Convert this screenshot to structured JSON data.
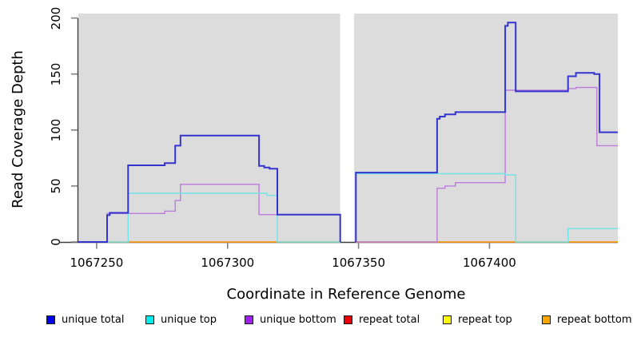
{
  "figure": {
    "x_axis_label": "Coordinate in Reference Genome",
    "y_axis_label": "Read Coverage Depth"
  },
  "legend": {
    "items": [
      {
        "label": "unique total",
        "color": "#0000EE"
      },
      {
        "label": "unique top",
        "color": "#00EEEE"
      },
      {
        "label": "unique bottom",
        "color": "#A020F0"
      },
      {
        "label": "repeat total",
        "color": "#EE0000"
      },
      {
        "label": "repeat top",
        "color": "#FFFF00"
      },
      {
        "label": "repeat bottom",
        "color": "#FFA500"
      }
    ]
  },
  "chart_data": {
    "type": "line",
    "subtype": "step-coverage-plot",
    "title": "",
    "xlabel": "Coordinate in Reference Genome",
    "ylabel": "Read Coverage Depth",
    "xlim": [
      1067243,
      1067449
    ],
    "ylim": [
      0,
      204
    ],
    "x_ticks": [
      1067250,
      1067300,
      1067350,
      1067400
    ],
    "y_ticks": [
      0,
      50,
      100,
      150,
      200
    ],
    "plot_background": "#DCDCDC",
    "gap_region_x": [
      1067343,
      1067348.3
    ],
    "grid": false,
    "legend_position": "bottom",
    "series": [
      {
        "name": "repeat total",
        "color": "#DD2222",
        "width": 1.2,
        "segments": [
          [
            [
              1067243,
              0
            ],
            [
              1067343,
              0
            ]
          ],
          [
            [
              1067349,
              0
            ],
            [
              1067449,
              0
            ]
          ]
        ]
      },
      {
        "name": "repeat top",
        "color": "#FFFF33",
        "width": 1.2,
        "segments": [
          [
            [
              1067243,
              0
            ],
            [
              1067343,
              0
            ]
          ],
          [
            [
              1067349,
              0
            ],
            [
              1067449,
              0
            ]
          ]
        ]
      },
      {
        "name": "repeat bottom",
        "color": "#FF9912",
        "width": 1.6,
        "segments": [
          [
            [
              1067243,
              0
            ],
            [
              1067343,
              0
            ]
          ],
          [
            [
              1067349,
              0
            ],
            [
              1067449,
              0
            ]
          ]
        ]
      },
      {
        "name": "unique bottom",
        "color": "#BC7CD9",
        "width": 1.4,
        "segments": [
          [
            [
              1067243,
              0
            ],
            [
              1067254,
              0
            ],
            [
              1067254,
              25.5
            ],
            [
              1067276,
              25.5
            ],
            [
              1067276,
              27.5
            ],
            [
              1067280,
              27.5
            ],
            [
              1067280,
              37
            ],
            [
              1067282,
              37
            ],
            [
              1067282,
              51.5
            ],
            [
              1067312,
              51.5
            ],
            [
              1067312,
              24.5
            ],
            [
              1067343,
              24.5
            ],
            [
              1067343,
              0
            ]
          ],
          [
            [
              1067349,
              0
            ],
            [
              1067380,
              0
            ],
            [
              1067380,
              48
            ],
            [
              1067383,
              48
            ],
            [
              1067383,
              50
            ],
            [
              1067387,
              50
            ],
            [
              1067387,
              53
            ],
            [
              1067406,
              53
            ],
            [
              1067406,
              135.5
            ],
            [
              1067430,
              135.5
            ],
            [
              1067430,
              137
            ],
            [
              1067433,
              137
            ],
            [
              1067433,
              138
            ],
            [
              1067441,
              138
            ],
            [
              1067441,
              86
            ],
            [
              1067449,
              86
            ]
          ]
        ]
      },
      {
        "name": "unique top",
        "color": "#6FE3E6",
        "width": 1.4,
        "segments": [
          [
            [
              1067243,
              0
            ],
            [
              1067262,
              0
            ],
            [
              1067262,
              43.5
            ],
            [
              1067315,
              43.5
            ],
            [
              1067315,
              41.5
            ],
            [
              1067319,
              41.5
            ],
            [
              1067319,
              0
            ],
            [
              1067343,
              0
            ]
          ],
          [
            [
              1067349,
              0
            ],
            [
              1067349,
              61
            ],
            [
              1067406,
              61
            ],
            [
              1067406,
              60
            ],
            [
              1067410,
              60
            ],
            [
              1067410,
              0
            ],
            [
              1067430,
              0
            ],
            [
              1067430,
              12
            ],
            [
              1067449,
              12
            ]
          ]
        ]
      },
      {
        "name": "unique total",
        "color": "#3434CF",
        "width": 2,
        "segments": [
          [
            [
              1067243,
              0
            ],
            [
              1067254,
              0
            ],
            [
              1067254,
              24
            ],
            [
              1067255,
              24
            ],
            [
              1067255,
              26
            ],
            [
              1067262,
              26
            ],
            [
              1067262,
              68.5
            ],
            [
              1067276,
              68.5
            ],
            [
              1067276,
              70.5
            ],
            [
              1067280,
              70.5
            ],
            [
              1067280,
              86
            ],
            [
              1067282,
              86
            ],
            [
              1067282,
              95
            ],
            [
              1067312,
              95
            ],
            [
              1067312,
              68
            ],
            [
              1067314,
              68
            ],
            [
              1067314,
              66.5
            ],
            [
              1067316,
              66.5
            ],
            [
              1067316,
              65.5
            ],
            [
              1067319,
              65.5
            ],
            [
              1067319,
              24.5
            ],
            [
              1067343,
              24.5
            ],
            [
              1067343,
              0
            ]
          ],
          [
            [
              1067349,
              0
            ],
            [
              1067349,
              62
            ],
            [
              1067380,
              62
            ],
            [
              1067380,
              110
            ],
            [
              1067381,
              110
            ],
            [
              1067381,
              112
            ],
            [
              1067383,
              112
            ],
            [
              1067383,
              114
            ],
            [
              1067387,
              114
            ],
            [
              1067387,
              116
            ],
            [
              1067406,
              116
            ],
            [
              1067406,
              193
            ],
            [
              1067407,
              193
            ],
            [
              1067407,
              196
            ],
            [
              1067410,
              196
            ],
            [
              1067410,
              134.5
            ],
            [
              1067430,
              134.5
            ],
            [
              1067430,
              148
            ],
            [
              1067433,
              148
            ],
            [
              1067433,
              151
            ],
            [
              1067440,
              151
            ],
            [
              1067440,
              150
            ],
            [
              1067442,
              150
            ],
            [
              1067442,
              98
            ],
            [
              1067449,
              98
            ]
          ]
        ]
      }
    ]
  }
}
